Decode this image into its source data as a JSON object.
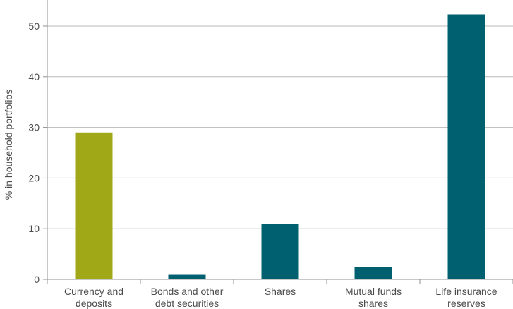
{
  "chart_data": {
    "type": "bar",
    "ylabel": "% in household portfolios",
    "ylim": [
      0,
      55
    ],
    "yticks": [
      0,
      10,
      20,
      30,
      40,
      50
    ],
    "grid": true,
    "categories": [
      [
        "Currency and",
        "deposits"
      ],
      [
        "Bonds and other",
        "debt securities"
      ],
      [
        "Shares"
      ],
      [
        "Mutual funds",
        "shares"
      ],
      [
        "Life insurance",
        "reserves"
      ]
    ],
    "values": [
      29,
      0.9,
      10.9,
      2.4,
      52.3
    ],
    "bar_colors": [
      "#a0a817",
      "#006070",
      "#006070",
      "#006070",
      "#006070"
    ],
    "gridline_color": "#b8b8b8",
    "axis_color": "#909090"
  }
}
